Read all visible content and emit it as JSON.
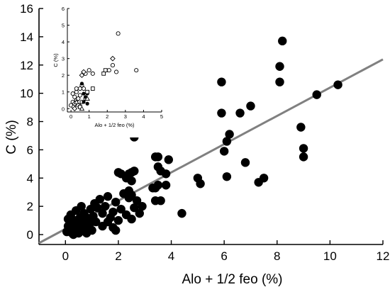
{
  "chart_data": [
    {
      "type": "scatter",
      "xlabel": "Alo + 1/2 feo (%)",
      "ylabel": "C (%)",
      "xlim": [
        -1,
        12
      ],
      "ylim": [
        -0.7,
        16
      ],
      "xticks": [
        0,
        2,
        4,
        6,
        8,
        10,
        12
      ],
      "yticks": [
        0,
        2,
        4,
        6,
        8,
        10,
        12,
        14,
        16
      ],
      "grid": false,
      "regression_line": {
        "x": [
          -1,
          12
        ],
        "y": [
          -0.6,
          12.4
        ],
        "color": "#808080"
      },
      "series": [
        {
          "marker": "filled-circle",
          "color": "#000000",
          "points": [
            [
              0.05,
              0.2
            ],
            [
              0.1,
              0.6
            ],
            [
              0.15,
              0.3
            ],
            [
              0.2,
              0.9
            ],
            [
              0.25,
              0.1
            ],
            [
              0.3,
              0.5
            ],
            [
              0.35,
              1.0
            ],
            [
              0.4,
              0.2
            ],
            [
              0.45,
              0.7
            ],
            [
              0.5,
              0.4
            ],
            [
              0.55,
              1.2
            ],
            [
              0.6,
              0.3
            ],
            [
              0.65,
              0.8
            ],
            [
              0.7,
              1.5
            ],
            [
              0.75,
              0.5
            ],
            [
              0.8,
              0.1
            ],
            [
              0.85,
              1.0
            ],
            [
              0.9,
              0.6
            ],
            [
              0.95,
              1.8
            ],
            [
              1.0,
              0.3
            ],
            [
              1.05,
              1.3
            ],
            [
              1.1,
              2.2
            ],
            [
              1.15,
              0.9
            ],
            [
              0.2,
              1.4
            ],
            [
              0.4,
              1.7
            ],
            [
              0.6,
              2.0
            ],
            [
              0.3,
              0.0
            ],
            [
              0.5,
              0.1
            ],
            [
              0.1,
              1.1
            ],
            [
              0.8,
              1.2
            ],
            [
              1.2,
              1.9
            ],
            [
              1.3,
              2.5
            ],
            [
              1.4,
              1.5
            ],
            [
              1.5,
              2.0
            ],
            [
              1.6,
              2.7
            ],
            [
              1.7,
              1.2
            ],
            [
              1.8,
              1.6
            ],
            [
              1.9,
              2.3
            ],
            [
              2.0,
              1.0
            ],
            [
              2.1,
              1.8
            ],
            [
              2.2,
              2.9
            ],
            [
              2.3,
              1.4
            ],
            [
              2.4,
              2.6
            ],
            [
              2.5,
              1.1
            ],
            [
              2.6,
              1.9
            ],
            [
              2.7,
              2.4
            ],
            [
              2.8,
              1.5
            ],
            [
              2.9,
              2.0
            ],
            [
              1.4,
              0.6
            ],
            [
              1.6,
              0.9
            ],
            [
              1.8,
              0.5
            ],
            [
              1.9,
              0.3
            ],
            [
              2.0,
              4.4
            ],
            [
              2.1,
              4.3
            ],
            [
              2.3,
              4.0
            ],
            [
              2.4,
              4.3
            ],
            [
              2.5,
              4.4
            ],
            [
              2.6,
              4.5
            ],
            [
              2.5,
              3.8
            ],
            [
              2.4,
              3.1
            ],
            [
              2.5,
              2.8
            ],
            [
              2.6,
              6.9
            ],
            [
              3.3,
              3.3
            ],
            [
              3.4,
              3.3
            ],
            [
              3.4,
              5.5
            ],
            [
              3.5,
              5.5
            ],
            [
              3.5,
              4.8
            ],
            [
              3.6,
              4.5
            ],
            [
              3.5,
              3.5
            ],
            [
              3.4,
              2.4
            ],
            [
              3.6,
              2.4
            ],
            [
              3.8,
              3.5
            ],
            [
              3.8,
              4.3
            ],
            [
              3.9,
              5.3
            ],
            [
              4.4,
              1.5
            ],
            [
              5.0,
              4.0
            ],
            [
              5.1,
              3.6
            ],
            [
              5.9,
              10.8
            ],
            [
              5.9,
              8.6
            ],
            [
              6.0,
              5.9
            ],
            [
              6.1,
              4.1
            ],
            [
              6.1,
              6.6
            ],
            [
              6.2,
              7.1
            ],
            [
              6.6,
              8.6
            ],
            [
              6.8,
              5.1
            ],
            [
              7.0,
              9.1
            ],
            [
              7.3,
              3.7
            ],
            [
              7.5,
              4.0
            ],
            [
              8.1,
              10.8
            ],
            [
              8.1,
              11.9
            ],
            [
              8.2,
              13.7
            ],
            [
              8.9,
              7.6
            ],
            [
              9.0,
              6.1
            ],
            [
              9.0,
              5.5
            ],
            [
              9.5,
              9.9
            ],
            [
              10.3,
              10.6
            ]
          ]
        }
      ]
    },
    {
      "type": "scatter",
      "inset": true,
      "xlabel": "Alo + 1/2 feo (%)",
      "ylabel": "C (%)",
      "xlim": [
        -0.2,
        5
      ],
      "ylim": [
        -0.2,
        6
      ],
      "xticks": [
        0,
        1,
        2,
        3,
        4,
        5
      ],
      "yticks": [
        0,
        1,
        2,
        3,
        4,
        5,
        6
      ],
      "series": [
        {
          "marker": "open-circle",
          "color": "#000000",
          "points": [
            [
              0.0,
              0.2
            ],
            [
              0.1,
              0.4
            ],
            [
              0.15,
              0.1
            ],
            [
              0.2,
              0.3
            ],
            [
              0.2,
              0.7
            ],
            [
              0.3,
              0.5
            ],
            [
              0.3,
              1.0
            ],
            [
              0.4,
              0.6
            ],
            [
              0.45,
              0.2
            ],
            [
              0.5,
              0.8
            ],
            [
              0.6,
              0.4
            ],
            [
              0.7,
              1.2
            ],
            [
              0.8,
              0.6
            ],
            [
              0.3,
              1.2
            ],
            [
              0.5,
              1.2
            ],
            [
              0.6,
              1.4
            ],
            [
              0.8,
              2.1
            ],
            [
              1.0,
              2.3
            ],
            [
              1.2,
              2.1
            ],
            [
              2.1,
              2.3
            ],
            [
              2.5,
              2.2
            ],
            [
              2.3,
              2.6
            ],
            [
              2.6,
              4.5
            ],
            [
              3.6,
              2.3
            ],
            [
              0.1,
              0.9
            ],
            [
              0.4,
              0.2
            ]
          ]
        },
        {
          "marker": "filled-circle",
          "color": "#000000",
          "points": [
            [
              0.6,
              1.5
            ],
            [
              0.7,
              0.4
            ],
            [
              0.8,
              0.7
            ],
            [
              0.9,
              0.3
            ],
            [
              0.7,
              0.9
            ],
            [
              0.9,
              0.9
            ]
          ]
        },
        {
          "marker": "open-square",
          "color": "#000000",
          "points": [
            [
              1.2,
              1.2
            ],
            [
              1.8,
              2.1
            ],
            [
              1.9,
              2.3
            ],
            [
              0.5,
              0.1
            ],
            [
              0.9,
              1.0
            ]
          ]
        },
        {
          "marker": "open-diamond",
          "color": "#000000",
          "points": [
            [
              0.6,
              2.0
            ],
            [
              0.7,
              2.2
            ],
            [
              2.3,
              3.0
            ],
            [
              0.2,
              0.0
            ]
          ]
        },
        {
          "marker": "open-triangle",
          "color": "#000000",
          "points": [
            [
              0.9,
              0.6
            ],
            [
              0.3,
              0.4
            ],
            [
              0.6,
              0.0
            ]
          ]
        }
      ]
    }
  ]
}
